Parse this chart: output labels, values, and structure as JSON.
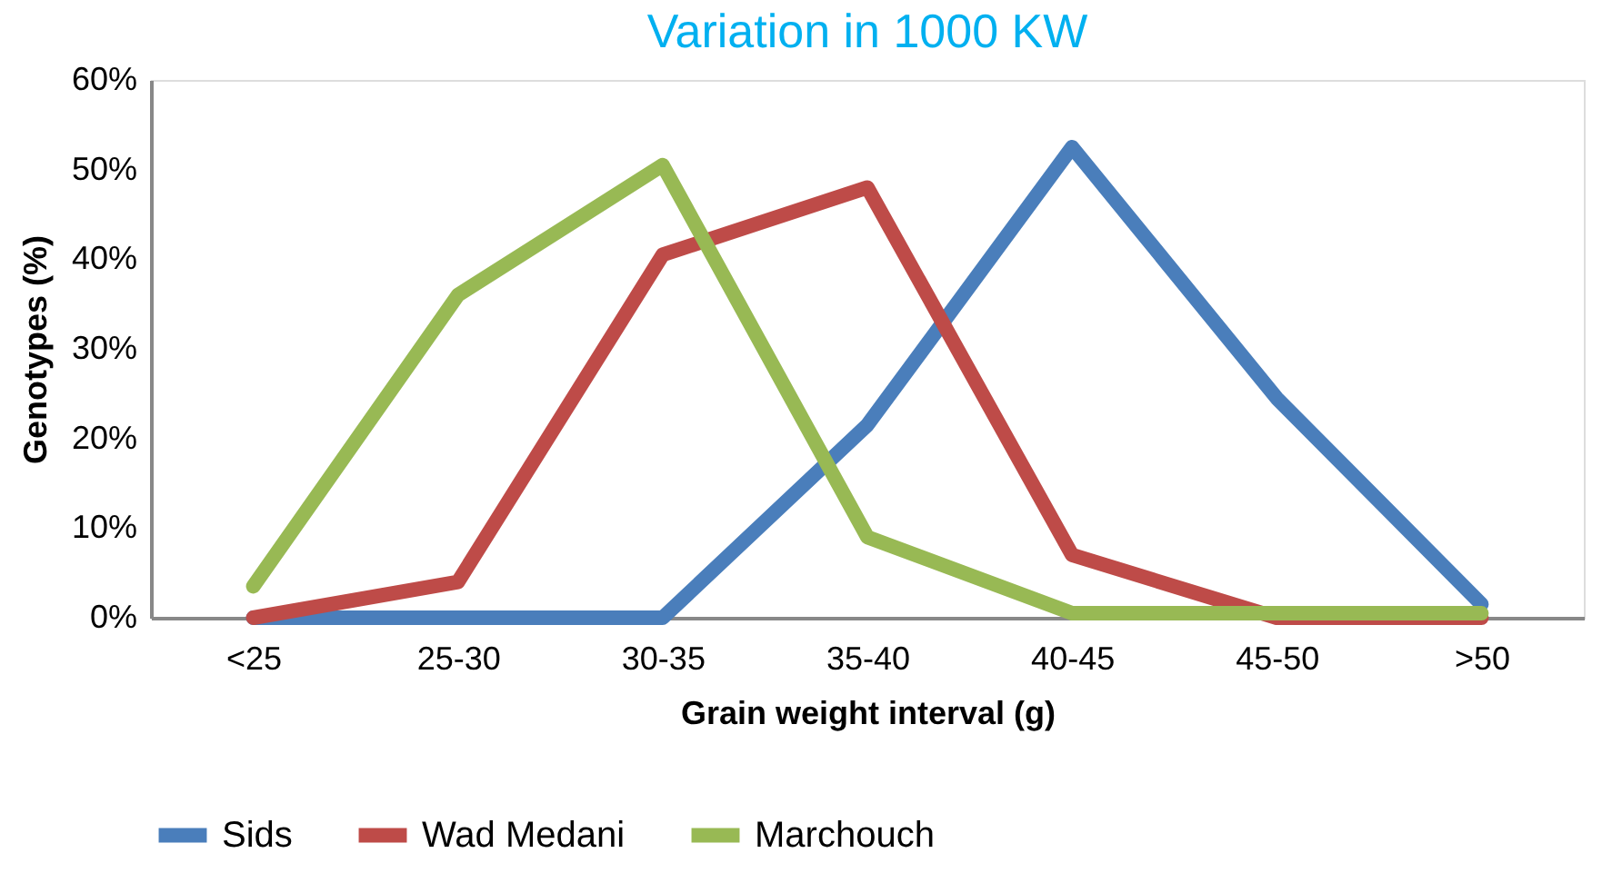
{
  "chart_data": {
    "type": "line",
    "title": "Variation in 1000 KW",
    "categories": [
      "<25",
      "25-30",
      "30-35",
      "35-40",
      "40-45",
      "45-50",
      ">50"
    ],
    "series": [
      {
        "name": "Sids",
        "color": "#4a7ebb",
        "values": [
          0,
          0,
          0,
          21.5,
          52.5,
          24.5,
          1.5
        ]
      },
      {
        "name": "Wad Medani",
        "color": "#be4b48",
        "values": [
          0,
          4,
          40.5,
          48,
          7,
          0,
          0
        ]
      },
      {
        "name": "Marchouch",
        "color": "#98b954",
        "values": [
          3.5,
          36,
          50.5,
          9,
          0.5,
          0.5,
          0.5
        ]
      }
    ],
    "xlabel": "Grain weight interval (g)",
    "ylabel": "Genotypes (%)",
    "ylim": [
      0,
      60
    ],
    "yticks": [
      {
        "value": 0,
        "label": "0%"
      },
      {
        "value": 10,
        "label": "10%"
      },
      {
        "value": 20,
        "label": "20%"
      },
      {
        "value": 30,
        "label": "30%"
      },
      {
        "value": 40,
        "label": "40%"
      },
      {
        "value": 50,
        "label": "50%"
      },
      {
        "value": 60,
        "label": "60%"
      }
    ],
    "grid": false,
    "legend": "bottom",
    "marker": "none",
    "line_style": "solid"
  }
}
